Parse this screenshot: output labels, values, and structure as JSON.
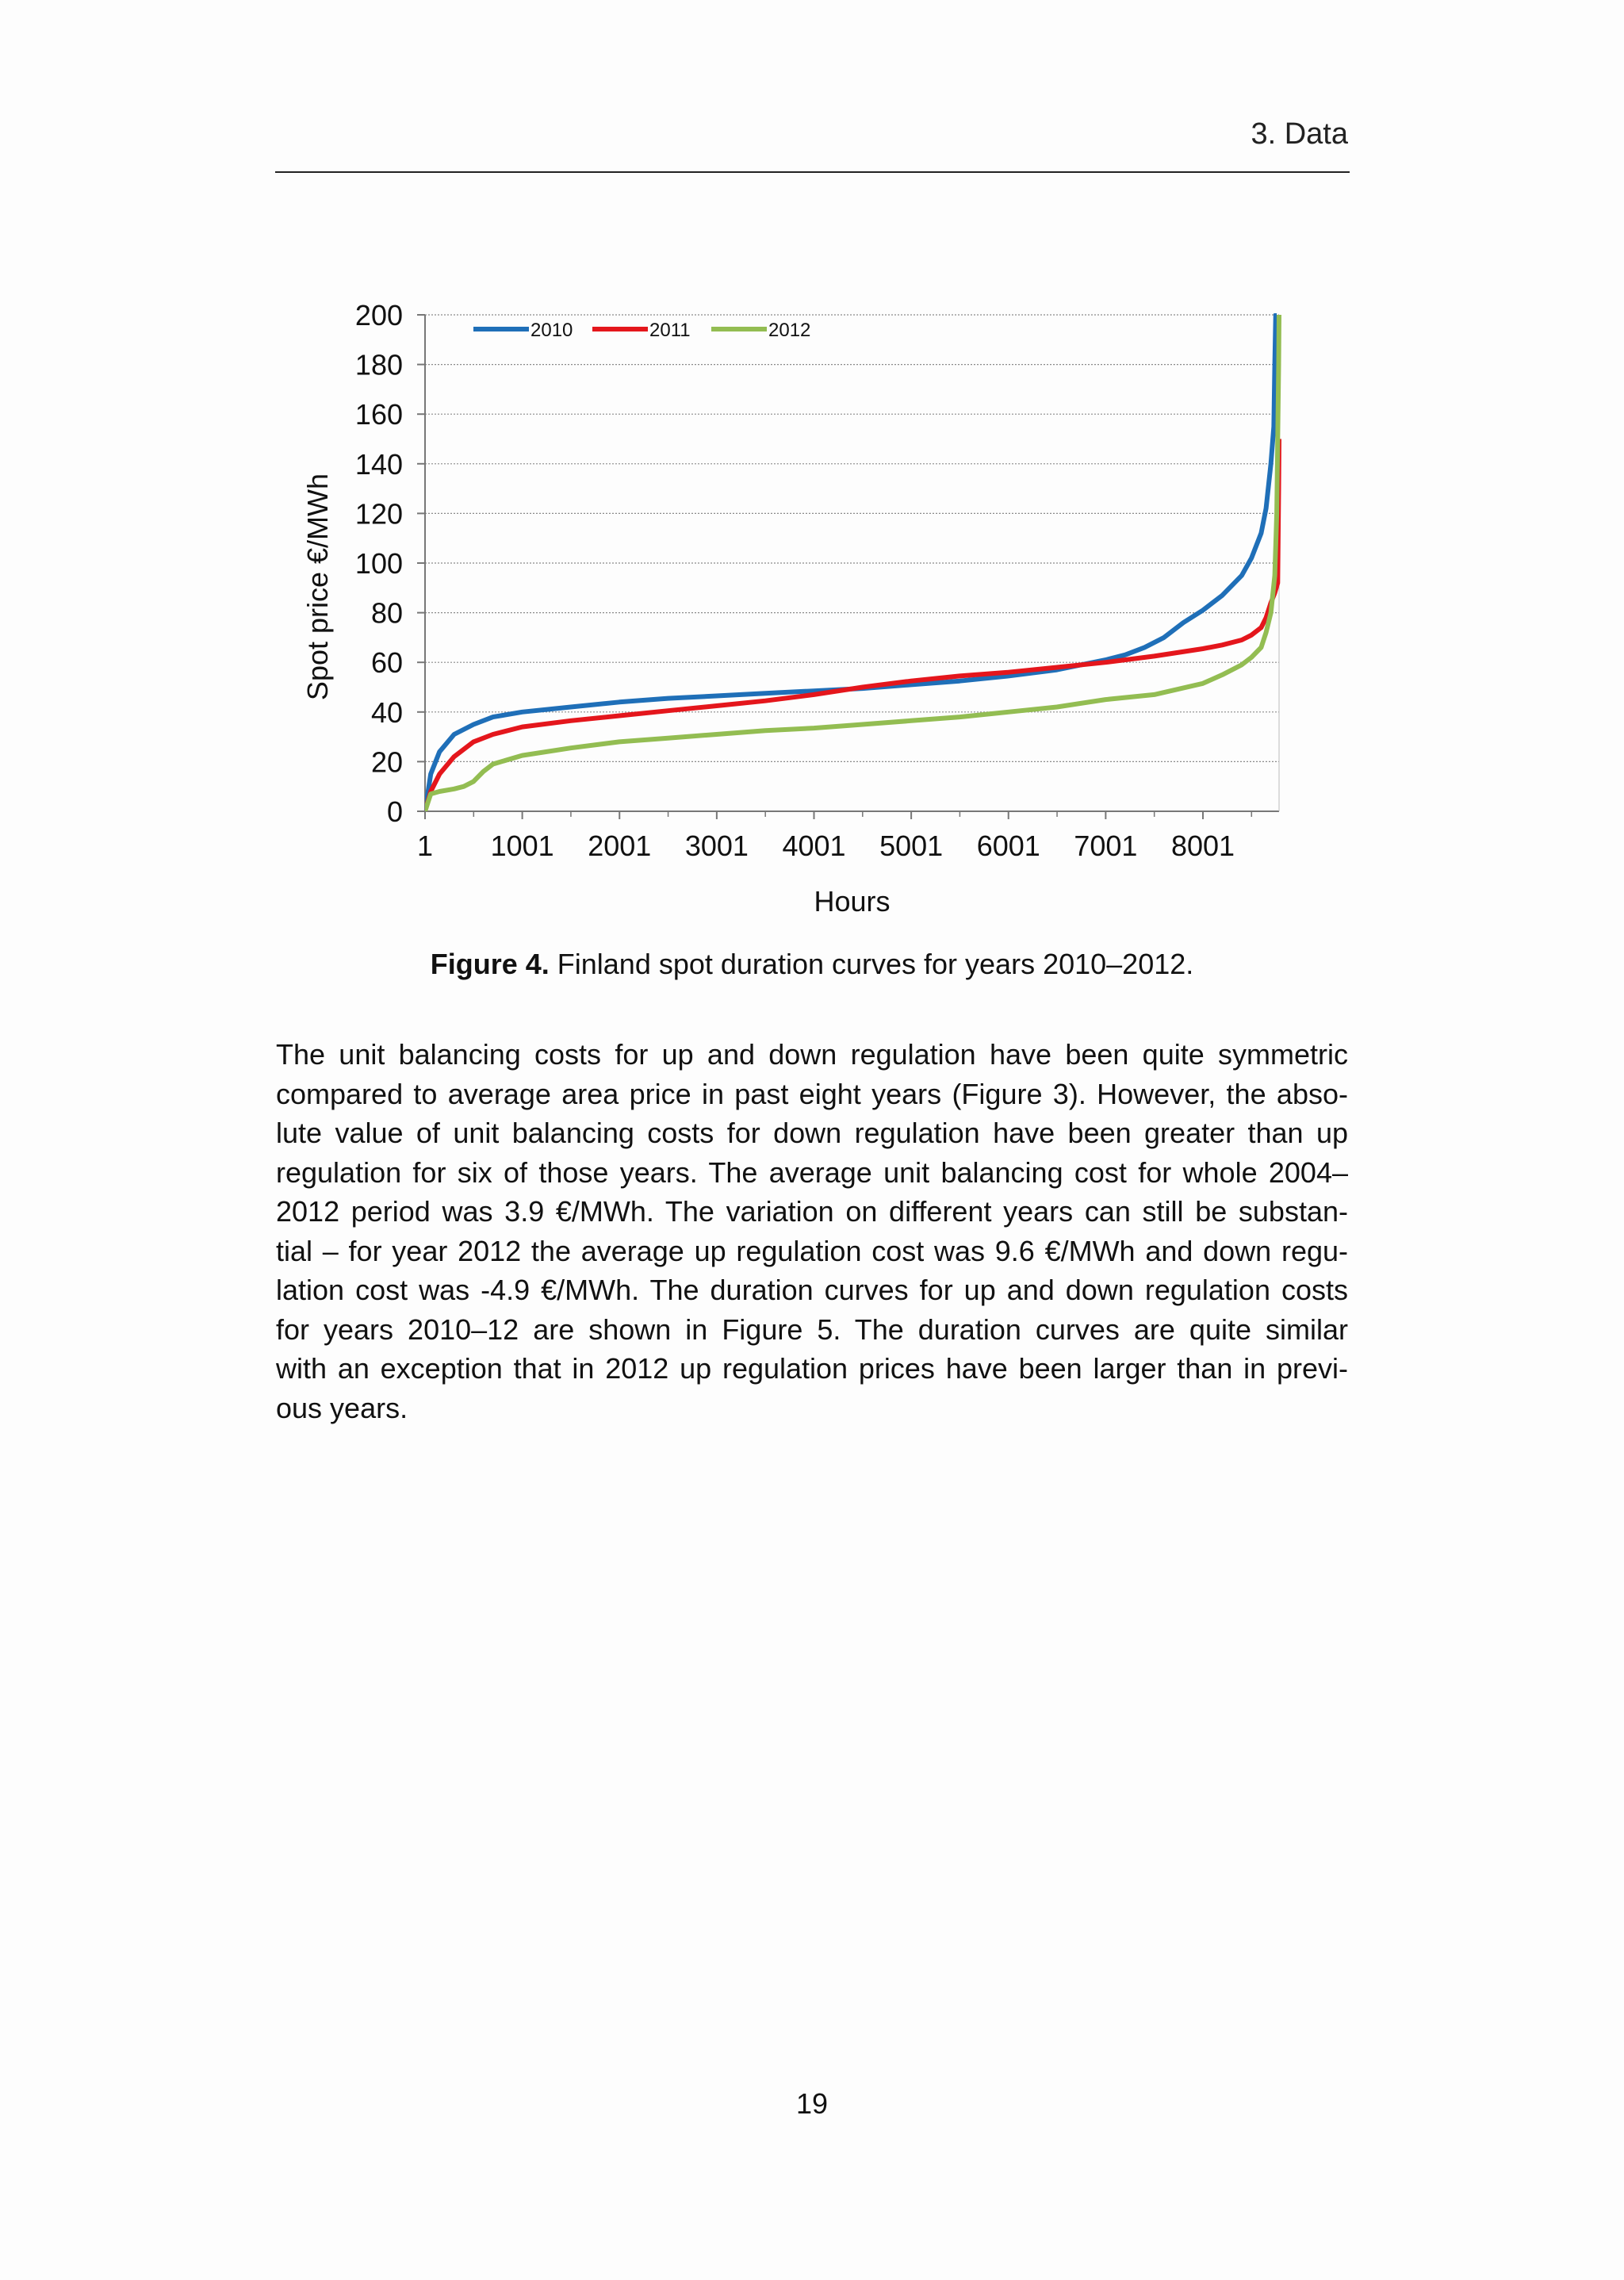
{
  "header": {
    "section": "3. Data"
  },
  "figure": {
    "label": "Figure 4.",
    "caption": "Finland spot duration curves for years 2010–2012."
  },
  "chart_data": {
    "type": "line",
    "xlabel": "Hours",
    "ylabel": "Spot price €/MWh",
    "xlim": [
      1,
      8784
    ],
    "ylim": [
      0,
      200
    ],
    "xticks": [
      1,
      1001,
      2001,
      3001,
      4001,
      5001,
      6001,
      7001,
      8001
    ],
    "yticks": [
      0,
      20,
      40,
      60,
      80,
      100,
      120,
      140,
      160,
      180,
      200
    ],
    "grid": "horizontal",
    "legend_position": "top-left",
    "series": [
      {
        "name": "2010",
        "color": "#1F6FB8",
        "x": [
          1,
          60,
          150,
          300,
          500,
          700,
          1000,
          1500,
          2000,
          2500,
          3000,
          3500,
          4000,
          4500,
          5000,
          5500,
          6000,
          6500,
          7000,
          7200,
          7400,
          7600,
          7800,
          8000,
          8200,
          8400,
          8500,
          8600,
          8650,
          8700,
          8730,
          8740,
          8750,
          8760
        ],
        "y": [
          0,
          15,
          24,
          31,
          35,
          38,
          40,
          42,
          44,
          45.5,
          46.5,
          47.5,
          48.5,
          49.5,
          51,
          52.5,
          54.5,
          57,
          61,
          63,
          66,
          70,
          76,
          81,
          87,
          95,
          102,
          112,
          122,
          140,
          155,
          180,
          200,
          200
        ]
      },
      {
        "name": "2011",
        "color": "#E4161C",
        "x": [
          1,
          60,
          150,
          300,
          500,
          700,
          1000,
          1500,
          2000,
          2500,
          3000,
          3500,
          4000,
          4500,
          5000,
          5500,
          6000,
          6500,
          7000,
          7500,
          8000,
          8200,
          8400,
          8500,
          8600,
          8650,
          8700,
          8740,
          8770,
          8780,
          8784
        ],
        "y": [
          0,
          8,
          15,
          22,
          28,
          31,
          34,
          36.5,
          38.5,
          40.5,
          42.5,
          44.5,
          47,
          50,
          52.5,
          54.5,
          56,
          58,
          60,
          62.5,
          65.5,
          67,
          69,
          71,
          74,
          78,
          84,
          88,
          92,
          130,
          150
        ]
      },
      {
        "name": "2012",
        "color": "#93BD52",
        "x": [
          1,
          60,
          150,
          300,
          400,
          500,
          600,
          700,
          1000,
          1500,
          2000,
          2500,
          3000,
          3500,
          4000,
          4500,
          5000,
          5500,
          6000,
          6500,
          7000,
          7500,
          8000,
          8200,
          8400,
          8500,
          8600,
          8650,
          8700,
          8740,
          8760,
          8770,
          8780,
          8784
        ],
        "y": [
          0,
          7,
          8,
          9,
          10,
          12,
          16,
          19,
          22.5,
          25.5,
          28,
          29.5,
          31,
          32.5,
          33.5,
          35,
          36.5,
          38,
          40,
          42,
          45,
          47,
          51.5,
          55,
          59,
          62,
          66,
          72,
          80,
          95,
          120,
          150,
          180,
          200
        ]
      }
    ]
  },
  "paragraph_lines": [
    "The unit balancing costs for up and down regulation have been quite symmetric",
    "compared to average area price in past eight years (Figure 3). However, the abso-",
    "lute value of unit balancing costs for down regulation have been greater than up",
    "regulation for six of those years. The average unit balancing cost for whole 2004–",
    "2012 period was 3.9 €/MWh. The variation on different years can still be substan-",
    "tial – for year 2012 the average up regulation cost was 9.6 €/MWh and down regu-",
    "lation cost was -4.9 €/MWh. The duration curves for up and down regulation costs",
    "for years 2010–12 are shown in Figure 5. The duration curves are quite similar",
    "with an exception that in 2012 up regulation prices have been larger than in previ-",
    "ous years."
  ],
  "page_number": "19"
}
